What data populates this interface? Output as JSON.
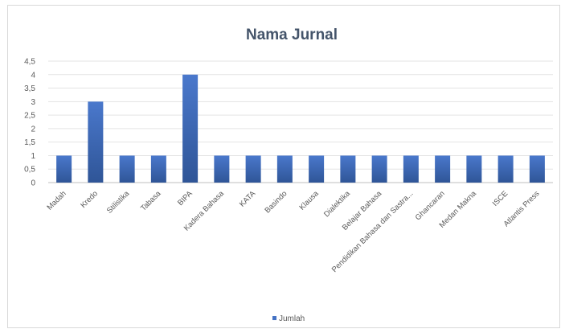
{
  "chart_data": {
    "type": "bar",
    "title": "Nama Jurnal",
    "xlabel": "",
    "ylabel": "",
    "categories": [
      "Madah",
      "Kredo",
      "Stilistika",
      "Tabasa",
      "BIPA",
      "Kadera Bahasa",
      "KATA",
      "Basindo",
      "Klausa",
      "Dialektika",
      "Belajar Bahasa",
      "Pendidikan Bahasa dan Sastra...",
      "Ghancaran",
      "Medan Makna",
      "ISCE",
      "Atlantis Press"
    ],
    "series": [
      {
        "name": "Jumlah",
        "values": [
          1,
          3,
          1,
          1,
          4,
          1,
          1,
          1,
          1,
          1,
          1,
          1,
          1,
          1,
          1,
          1
        ]
      }
    ],
    "yticks": [
      "0",
      "0,5",
      "1",
      "1,5",
      "2",
      "2,5",
      "3",
      "3,5",
      "4",
      "4,5"
    ],
    "ylim": [
      0,
      4.5
    ],
    "grid": true,
    "legend_position": "bottom",
    "bar_color": "#4472c4"
  }
}
